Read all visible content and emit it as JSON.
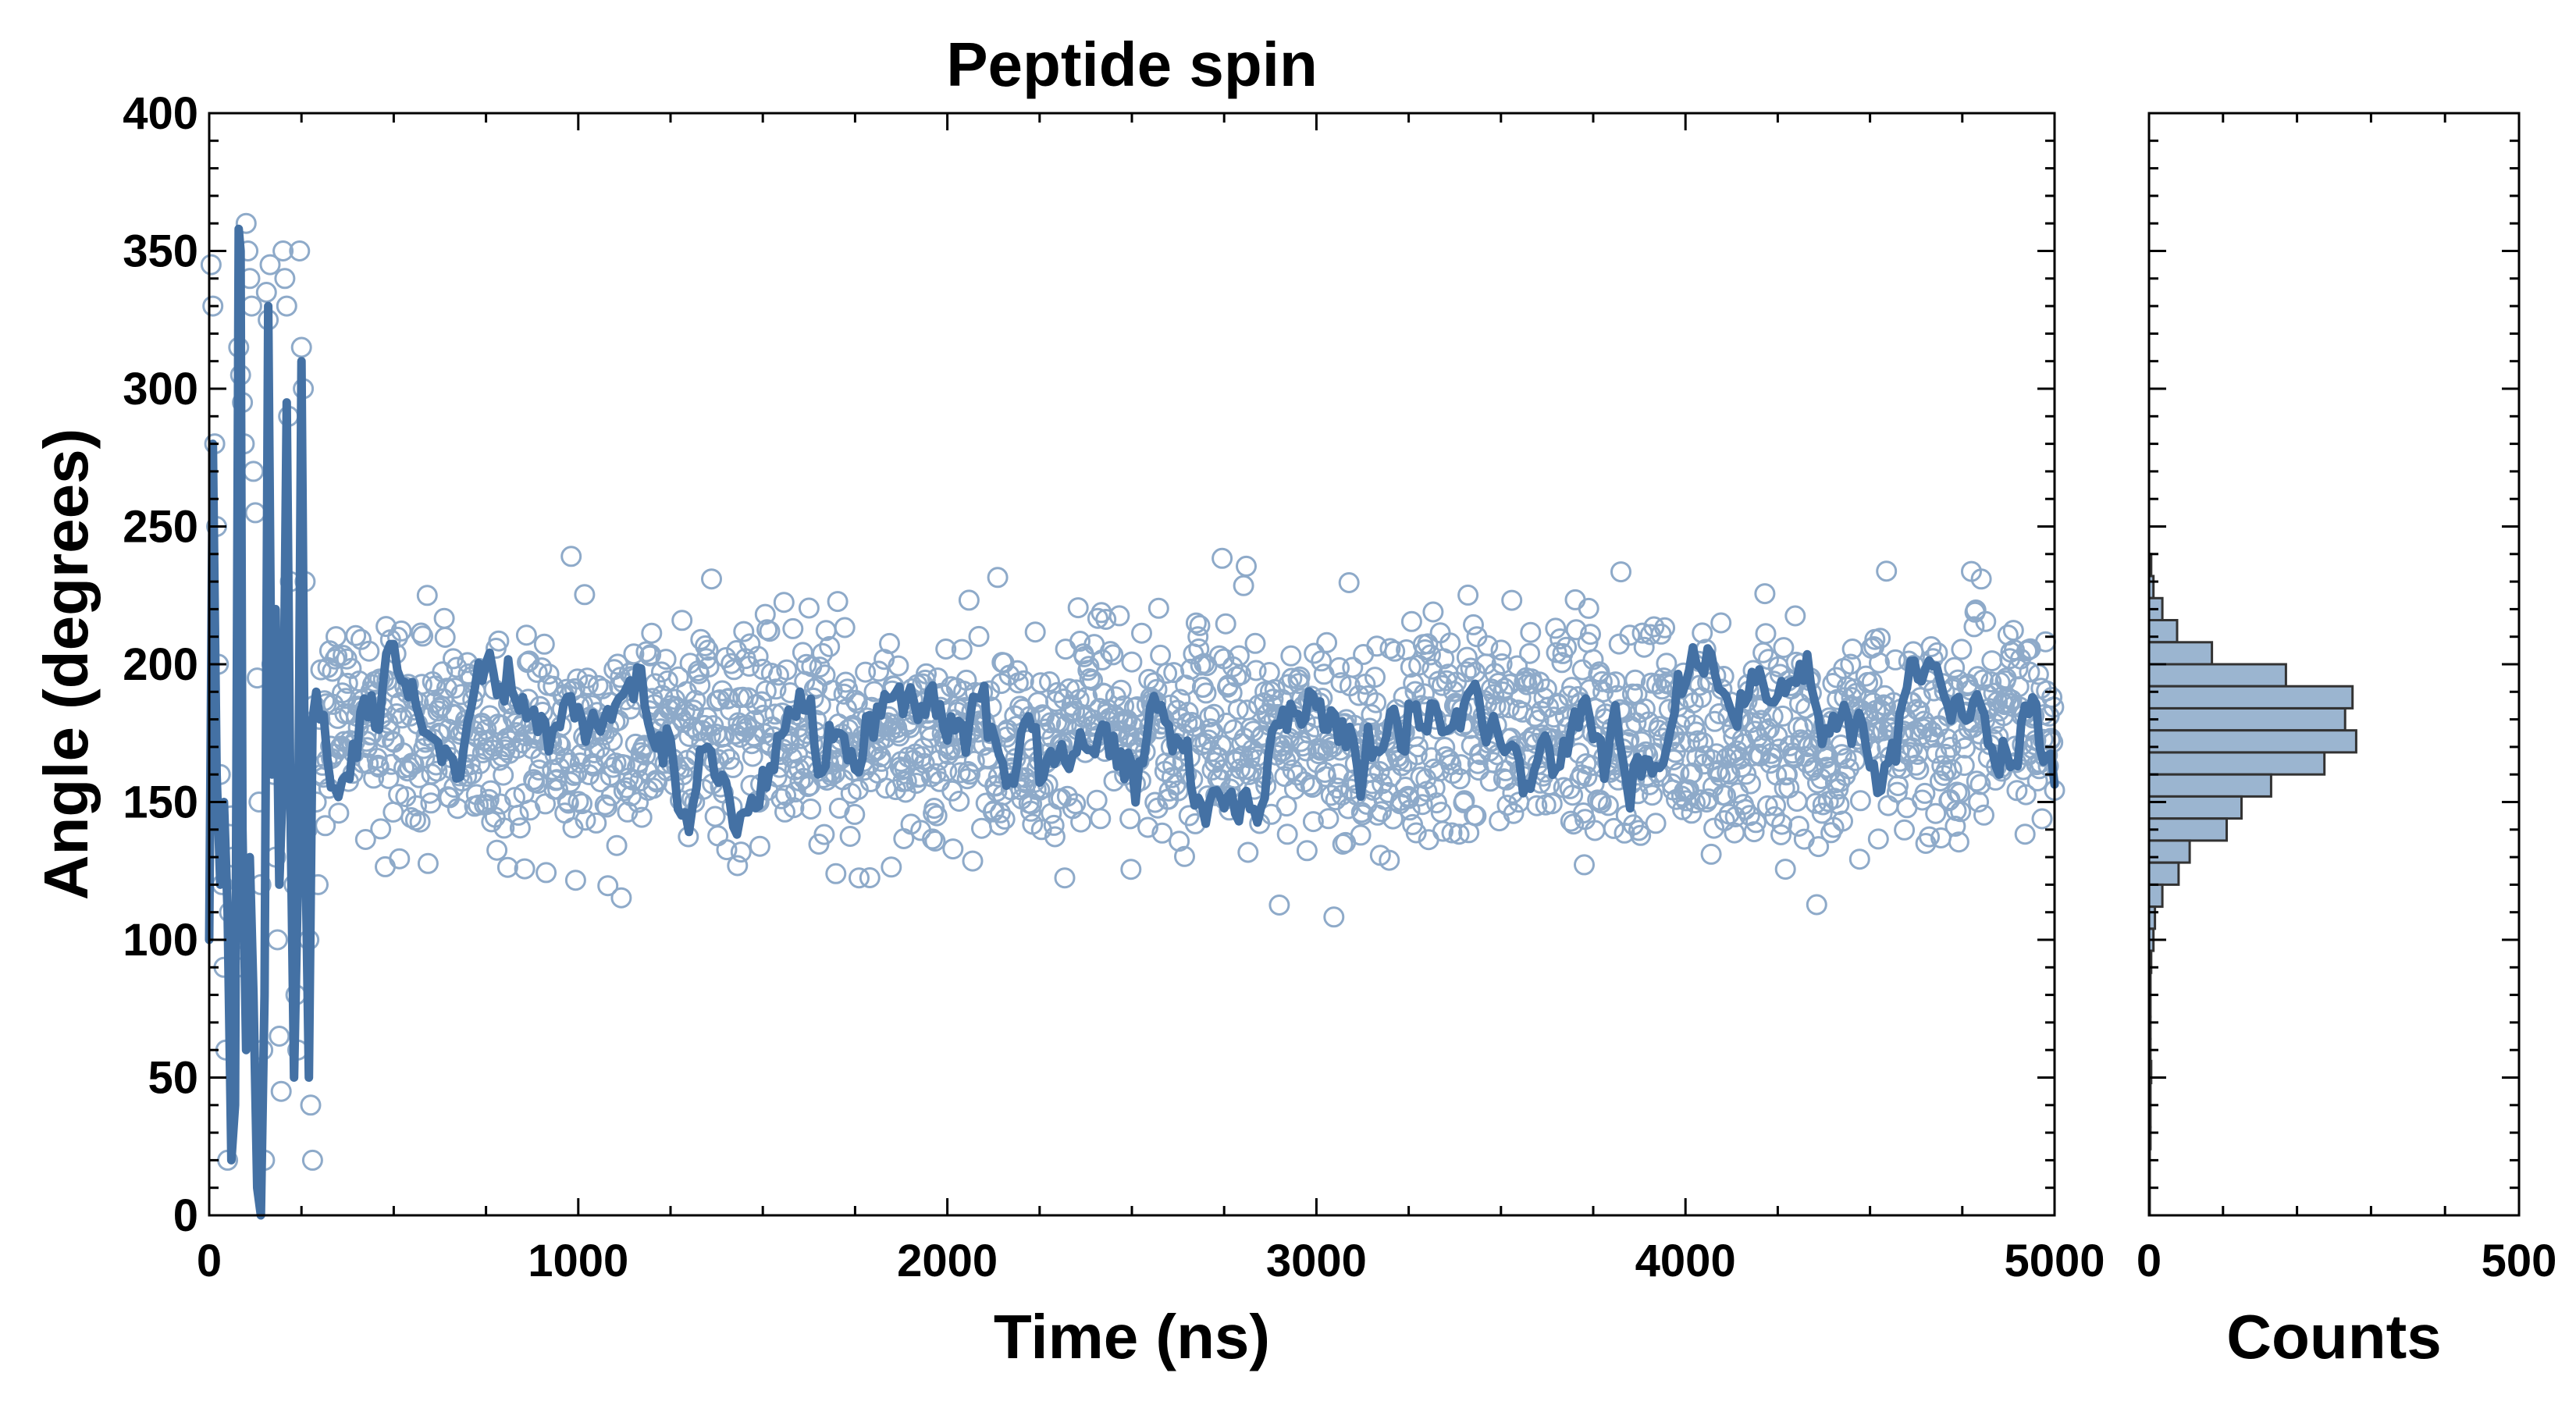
{
  "chart_data": [
    {
      "type": "scatter",
      "title": "Peptide spin",
      "xlabel": "Time (ns)",
      "ylabel": "Angle (degrees)",
      "xlim": [
        0,
        5000
      ],
      "ylim": [
        0,
        400
      ],
      "x_ticks": [
        "0",
        "1000",
        "2000",
        "3000",
        "4000",
        "5000"
      ],
      "y_ticks": [
        "0",
        "50",
        "100",
        "150",
        "200",
        "250",
        "300",
        "350",
        "400"
      ],
      "grid": false,
      "legend": "none",
      "series": [
        {
          "kind": "scatter",
          "marker": "open-circle",
          "color": "#8eaac9",
          "summary": {
            "t_start": 0,
            "t_end": 5000,
            "n_points": 2000,
            "equilibrium_mean": 175,
            "equilibrium_sd": 20,
            "early_phase_end_ns": 300
          },
          "early_points": [
            [
              5,
              345
            ],
            [
              10,
              330
            ],
            [
              15,
              280
            ],
            [
              20,
              250
            ],
            [
              25,
              200
            ],
            [
              30,
              160
            ],
            [
              35,
              120
            ],
            [
              40,
              90
            ],
            [
              45,
              60
            ],
            [
              50,
              20
            ],
            [
              55,
              110
            ],
            [
              60,
              145
            ],
            [
              65,
              130
            ],
            [
              70,
              100
            ],
            [
              75,
              90
            ],
            [
              80,
              315
            ],
            [
              85,
              305
            ],
            [
              90,
              295
            ],
            [
              95,
              280
            ],
            [
              100,
              360
            ],
            [
              105,
              350
            ],
            [
              110,
              340
            ],
            [
              115,
              330
            ],
            [
              120,
              270
            ],
            [
              125,
              255
            ],
            [
              130,
              195
            ],
            [
              135,
              150
            ],
            [
              140,
              120
            ],
            [
              145,
              60
            ],
            [
              150,
              20
            ],
            [
              155,
              335
            ],
            [
              160,
              325
            ],
            [
              165,
              345
            ],
            [
              170,
              200
            ],
            [
              175,
              160
            ],
            [
              180,
              130
            ],
            [
              185,
              100
            ],
            [
              190,
              65
            ],
            [
              195,
              45
            ],
            [
              200,
              350
            ],
            [
              205,
              340
            ],
            [
              210,
              330
            ],
            [
              215,
              290
            ],
            [
              220,
              230
            ],
            [
              225,
              160
            ],
            [
              230,
              120
            ],
            [
              235,
              80
            ],
            [
              240,
              60
            ],
            [
              245,
              350
            ],
            [
              250,
              315
            ],
            [
              255,
              300
            ],
            [
              260,
              230
            ],
            [
              265,
              140
            ],
            [
              270,
              100
            ],
            [
              275,
              40
            ],
            [
              280,
              20
            ],
            [
              285,
              185
            ],
            [
              290,
              150
            ],
            [
              295,
              120
            ],
            [
              300,
              180
            ]
          ]
        },
        {
          "kind": "line",
          "name": "",
          "color": "#4471a4",
          "summary": {
            "smoothing_window_ns": 25,
            "mean": 175,
            "fluctuation": 12
          },
          "early_points": [
            [
              0,
              100
            ],
            [
              10,
              280
            ],
            [
              20,
              160
            ],
            [
              30,
              120
            ],
            [
              40,
              150
            ],
            [
              50,
              110
            ],
            [
              60,
              20
            ],
            [
              70,
              40
            ],
            [
              80,
              358
            ],
            [
              85,
              350
            ],
            [
              90,
              140
            ],
            [
              100,
              60
            ],
            [
              110,
              130
            ],
            [
              120,
              80
            ],
            [
              130,
              10
            ],
            [
              140,
              0
            ],
            [
              150,
              80
            ],
            [
              160,
              330
            ],
            [
              170,
              160
            ],
            [
              180,
              220
            ],
            [
              190,
              120
            ],
            [
              200,
              160
            ],
            [
              210,
              295
            ],
            [
              220,
              150
            ],
            [
              230,
              50
            ],
            [
              240,
              120
            ],
            [
              250,
              310
            ],
            [
              260,
              140
            ],
            [
              270,
              50
            ],
            [
              280,
              180
            ],
            [
              290,
              190
            ],
            [
              300,
              180
            ]
          ]
        }
      ]
    },
    {
      "type": "bar",
      "orientation": "horizontal",
      "xlabel": "Counts",
      "ylabel": "",
      "xlim": [
        0,
        500
      ],
      "ylim": [
        0,
        400
      ],
      "x_ticks": [
        "0",
        "500"
      ],
      "grid": false,
      "legend": "none",
      "bar_color": "#9bb5d0",
      "edge_color": "#333333",
      "bin_width": 8,
      "bins": [
        {
          "y0": 232,
          "y1": 240,
          "count": 3
        },
        {
          "y0": 224,
          "y1": 232,
          "count": 6
        },
        {
          "y0": 216,
          "y1": 224,
          "count": 18
        },
        {
          "y0": 208,
          "y1": 216,
          "count": 38
        },
        {
          "y0": 200,
          "y1": 208,
          "count": 85
        },
        {
          "y0": 192,
          "y1": 200,
          "count": 185
        },
        {
          "y0": 184,
          "y1": 192,
          "count": 275
        },
        {
          "y0": 176,
          "y1": 184,
          "count": 265
        },
        {
          "y0": 168,
          "y1": 176,
          "count": 280
        },
        {
          "y0": 160,
          "y1": 168,
          "count": 237
        },
        {
          "y0": 152,
          "y1": 160,
          "count": 165
        },
        {
          "y0": 144,
          "y1": 152,
          "count": 125
        },
        {
          "y0": 136,
          "y1": 144,
          "count": 105
        },
        {
          "y0": 128,
          "y1": 136,
          "count": 55
        },
        {
          "y0": 120,
          "y1": 128,
          "count": 40
        },
        {
          "y0": 112,
          "y1": 120,
          "count": 18
        },
        {
          "y0": 104,
          "y1": 112,
          "count": 8
        },
        {
          "y0": 96,
          "y1": 104,
          "count": 6
        },
        {
          "y0": 88,
          "y1": 96,
          "count": 3
        },
        {
          "y0": 80,
          "y1": 88,
          "count": 2
        },
        {
          "y0": 72,
          "y1": 80,
          "count": 2
        },
        {
          "y0": 64,
          "y1": 72,
          "count": 2
        },
        {
          "y0": 56,
          "y1": 64,
          "count": 2
        },
        {
          "y0": 48,
          "y1": 56,
          "count": 3
        },
        {
          "y0": 40,
          "y1": 48,
          "count": 2
        },
        {
          "y0": 32,
          "y1": 40,
          "count": 2
        },
        {
          "y0": 24,
          "y1": 32,
          "count": 2
        },
        {
          "y0": 16,
          "y1": 24,
          "count": 1
        },
        {
          "y0": 8,
          "y1": 16,
          "count": 1
        },
        {
          "y0": 0,
          "y1": 8,
          "count": 1
        }
      ]
    }
  ]
}
